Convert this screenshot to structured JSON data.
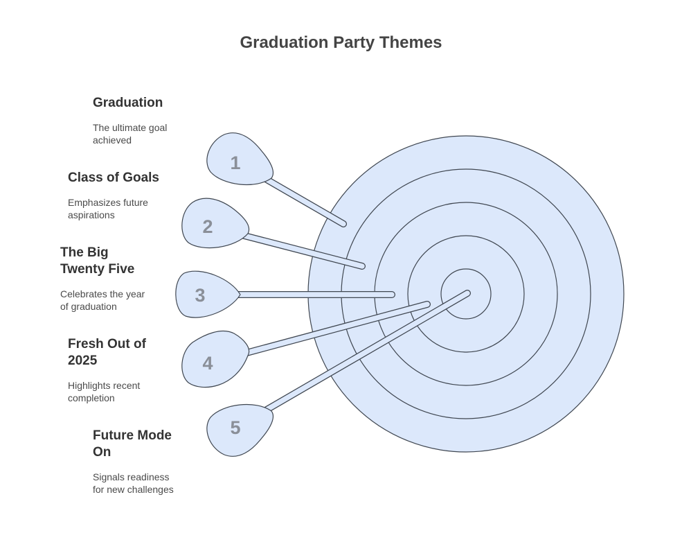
{
  "title": "Graduation Party Themes",
  "colors": {
    "target_fill": "#dce8fb",
    "stroke": "#3f4650",
    "number": "#8a8f98"
  },
  "items": [
    {
      "number": "1",
      "heading_lines": [
        "Graduation"
      ],
      "desc_lines": [
        "The ultimate goal",
        "achieved"
      ]
    },
    {
      "number": "2",
      "heading_lines": [
        "Class of Goals"
      ],
      "desc_lines": [
        "Emphasizes future",
        "aspirations"
      ]
    },
    {
      "number": "3",
      "heading_lines": [
        "The Big",
        "Twenty Five"
      ],
      "desc_lines": [
        "Celebrates the year",
        "of graduation"
      ]
    },
    {
      "number": "4",
      "heading_lines": [
        "Fresh Out of",
        "2025"
      ],
      "desc_lines": [
        "Highlights recent",
        "completion"
      ]
    },
    {
      "number": "5",
      "heading_lines": [
        "Future Mode",
        "On"
      ],
      "desc_lines": [
        "Signals readiness",
        "for new challenges"
      ]
    }
  ]
}
